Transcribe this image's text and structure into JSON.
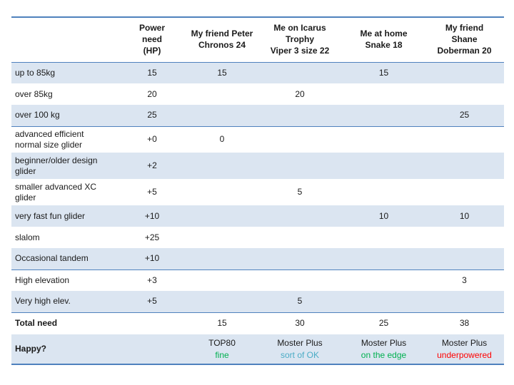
{
  "colors": {
    "border": "#4F81BD",
    "band": "#DBE5F1",
    "good_green": "#00B050",
    "okay_teal": "#4BACC6",
    "bad_red": "#FF0000"
  },
  "table": {
    "header": {
      "row_label_column": "",
      "columns": [
        "Power\nneed\n(HP)",
        "My friend Peter\nChronos 24",
        "Me on Icarus\nTrophy\nViper 3 size 22",
        "Me at home\nSnake 18",
        "My friend\nShane\nDoberman 20"
      ]
    },
    "rows": [
      {
        "label": "up to 85kg",
        "values": [
          "15",
          "15",
          "",
          "15",
          ""
        ],
        "shaded": true,
        "section_end": false,
        "bold": false
      },
      {
        "label": "over 85kg",
        "values": [
          "20",
          "",
          "20",
          "",
          ""
        ],
        "shaded": false,
        "section_end": false,
        "bold": false
      },
      {
        "label": "over 100 kg",
        "values": [
          "25",
          "",
          "",
          "",
          "25"
        ],
        "shaded": true,
        "section_end": true,
        "bold": false
      },
      {
        "label": "advanced efficient\nnormal size glider",
        "values": [
          "+0",
          "0",
          "",
          "",
          ""
        ],
        "shaded": false,
        "section_end": false,
        "bold": false
      },
      {
        "label": "beginner/older design\nglider",
        "values": [
          "+2",
          "",
          "",
          "",
          ""
        ],
        "shaded": true,
        "section_end": false,
        "bold": false
      },
      {
        "label": "smaller advanced XC\nglider",
        "values": [
          "+5",
          "",
          "5",
          "",
          ""
        ],
        "shaded": false,
        "section_end": false,
        "bold": false
      },
      {
        "label": "very fast fun glider",
        "values": [
          "+10",
          "",
          "",
          "10",
          "10"
        ],
        "shaded": true,
        "section_end": false,
        "bold": false
      },
      {
        "label": "slalom",
        "values": [
          "+25",
          "",
          "",
          "",
          ""
        ],
        "shaded": false,
        "section_end": false,
        "bold": false
      },
      {
        "label": "Occasional tandem",
        "values": [
          "+10",
          "",
          "",
          "",
          ""
        ],
        "shaded": true,
        "section_end": true,
        "bold": false
      },
      {
        "label": "High elevation",
        "values": [
          "+3",
          "",
          "",
          "",
          "3"
        ],
        "shaded": false,
        "section_end": false,
        "bold": false
      },
      {
        "label": "Very high elev.",
        "values": [
          "+5",
          "",
          "5",
          "",
          ""
        ],
        "shaded": true,
        "section_end": true,
        "bold": false
      },
      {
        "label": "Total need",
        "values": [
          "",
          "15",
          "30",
          "25",
          "38"
        ],
        "shaded": false,
        "section_end": false,
        "bold": true,
        "total": true
      }
    ],
    "happy_row": {
      "label": "Happy?",
      "cells": [
        {
          "engine": "",
          "verdict": "",
          "verdict_color": ""
        },
        {
          "engine": "TOP80",
          "verdict": "fine",
          "verdict_color": "#00B050"
        },
        {
          "engine": "Moster Plus",
          "verdict": "sort of OK",
          "verdict_color": "#4BACC6"
        },
        {
          "engine": "Moster Plus",
          "verdict": "on the edge",
          "verdict_color": "#00B050"
        },
        {
          "engine": "Moster Plus",
          "verdict": "underpowered",
          "verdict_color": "#FF0000"
        }
      ]
    }
  }
}
